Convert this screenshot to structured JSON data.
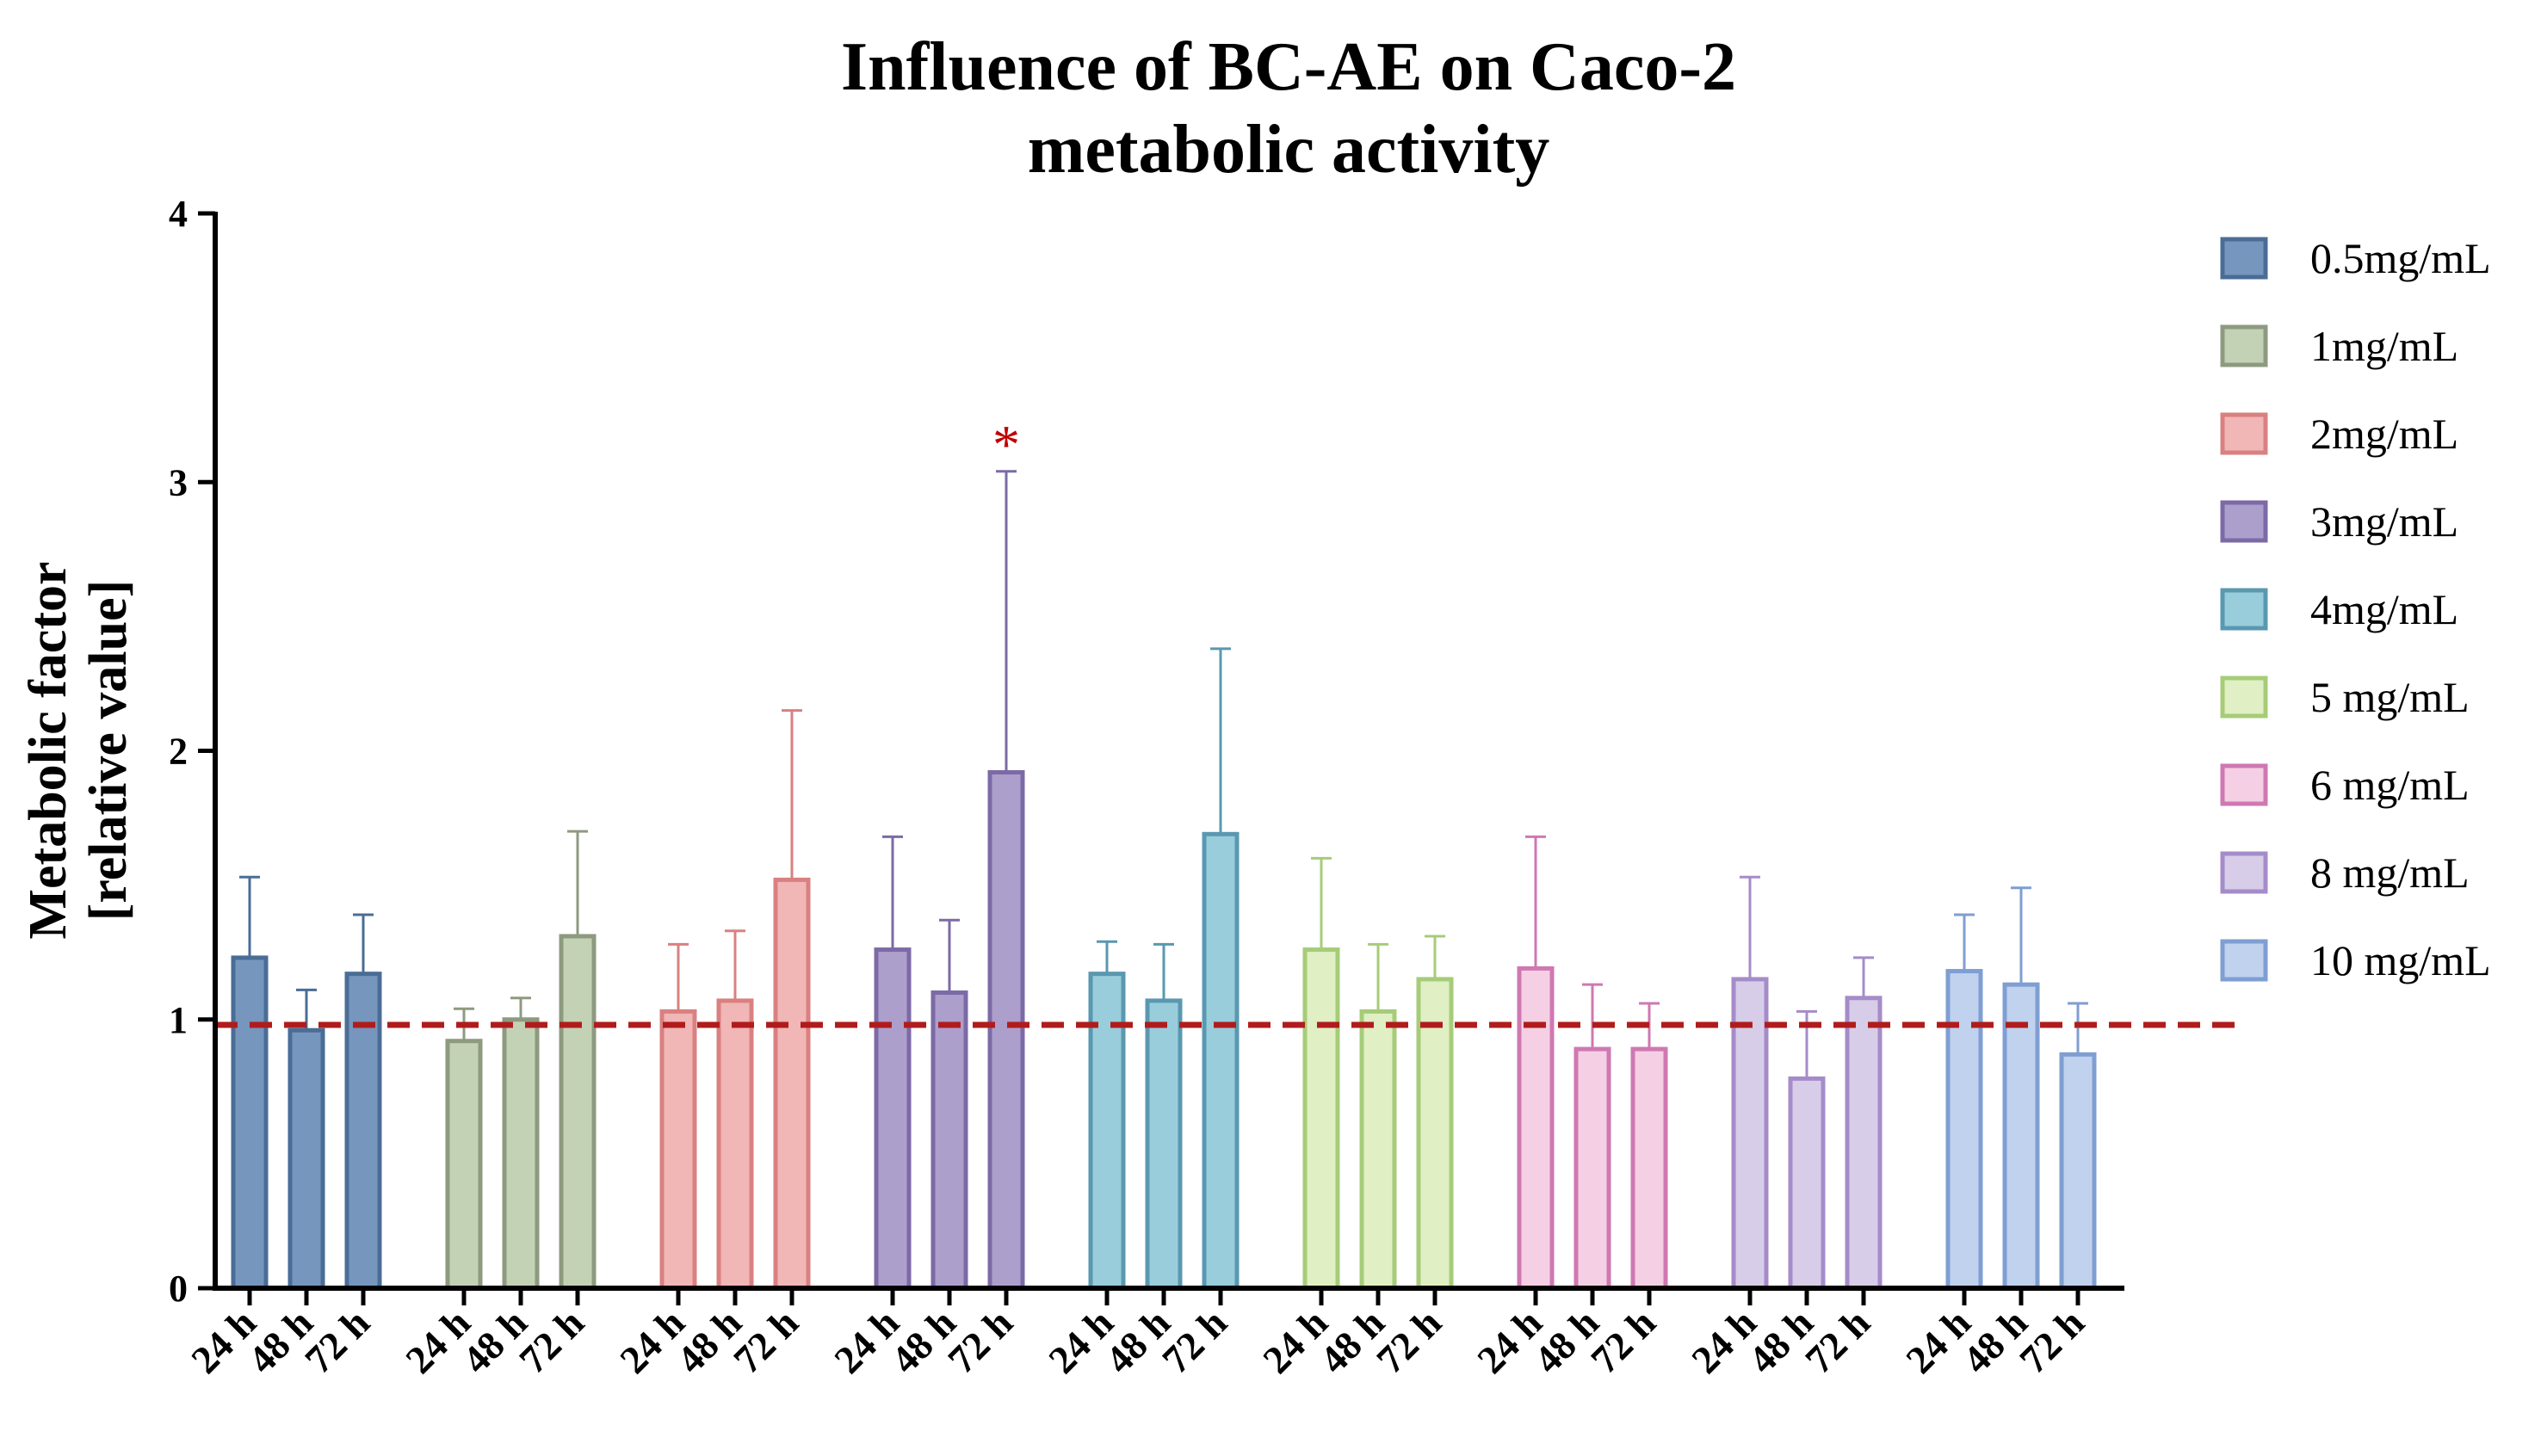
{
  "chart_data": {
    "type": "bar",
    "title": [
      "Influence of BC-AE on Caco-2",
      "metabolic activity"
    ],
    "ylabel": [
      "Metabolic factor",
      "[relative value]"
    ],
    "xlabel": "",
    "ylim": [
      0,
      4
    ],
    "yticks": [
      "0",
      "1",
      "2",
      "3",
      "4"
    ],
    "time_labels": [
      "24 h",
      "48 h",
      "72 h"
    ],
    "reference_line": {
      "y": 0.98,
      "style": "dashed",
      "color": "#b01c1c"
    },
    "legend_position": "right",
    "grid": false,
    "series": [
      {
        "name": "0.5mg/mL",
        "fill": "#7696bd",
        "stroke": "#4a6d96",
        "values": [
          1.23,
          0.96,
          1.17
        ],
        "error_upper": [
          1.53,
          1.11,
          1.39
        ]
      },
      {
        "name": "1mg/mL",
        "fill": "#c3d2b4",
        "stroke": "#8e9a80",
        "values": [
          0.92,
          1.0,
          1.31
        ],
        "error_upper": [
          1.04,
          1.08,
          1.7
        ]
      },
      {
        "name": "2mg/mL",
        "fill": "#f1b6b6",
        "stroke": "#d98080",
        "values": [
          1.03,
          1.07,
          1.52
        ],
        "error_upper": [
          1.28,
          1.33,
          2.15
        ]
      },
      {
        "name": "3mg/mL",
        "fill": "#ad9fcc",
        "stroke": "#7c6aa6",
        "values": [
          1.26,
          1.1,
          1.92
        ],
        "error_upper": [
          1.68,
          1.37,
          3.04
        ]
      },
      {
        "name": "4mg/mL",
        "fill": "#99cddb",
        "stroke": "#5a98b0",
        "values": [
          1.17,
          1.07,
          1.69
        ],
        "error_upper": [
          1.29,
          1.28,
          2.38
        ]
      },
      {
        "name": "5 mg/mL",
        "fill": "#e0efc4",
        "stroke": "#a6cc78",
        "values": [
          1.26,
          1.03,
          1.15
        ],
        "error_upper": [
          1.6,
          1.28,
          1.31
        ]
      },
      {
        "name": "6 mg/mL",
        "fill": "#f5d0e4",
        "stroke": "#cf78b2",
        "values": [
          1.19,
          0.89,
          0.89
        ],
        "error_upper": [
          1.68,
          1.13,
          1.06
        ]
      },
      {
        "name": "8 mg/mL",
        "fill": "#d7cde8",
        "stroke": "#a58cc9",
        "values": [
          1.15,
          0.78,
          1.08
        ],
        "error_upper": [
          1.53,
          1.03,
          1.23
        ]
      },
      {
        "name": "10 mg/mL",
        "fill": "#c0d2ed",
        "stroke": "#7f9ed2",
        "values": [
          1.18,
          1.13,
          0.87
        ],
        "error_upper": [
          1.39,
          1.49,
          1.06
        ]
      }
    ],
    "annotations": [
      {
        "text": "*",
        "series_index": 3,
        "bar_index": 2
      }
    ]
  }
}
